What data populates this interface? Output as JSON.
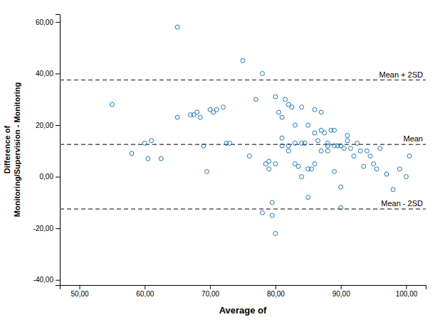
{
  "chart_data": {
    "type": "scatter",
    "xlabel": "Average of",
    "ylabel": [
      "Difference of",
      "Monitoring/Supervision - Monitoring"
    ],
    "marker": "open-circle",
    "grid": false,
    "xlim": [
      47,
      103
    ],
    "ylim": [
      -42,
      63
    ],
    "xticks": [
      {
        "value": 50,
        "label": "50,00"
      },
      {
        "value": 60,
        "label": "60,00"
      },
      {
        "value": 70,
        "label": "70,00"
      },
      {
        "value": 80,
        "label": "80,00"
      },
      {
        "value": 90,
        "label": "90,00"
      },
      {
        "value": 100,
        "label": "100,00"
      }
    ],
    "yticks": [
      {
        "value": -40,
        "label": "-40,00"
      },
      {
        "value": -20,
        "label": "-20,00"
      },
      {
        "value": 0,
        "label": "0,00"
      },
      {
        "value": 20,
        "label": "20,00"
      },
      {
        "value": 40,
        "label": "40,00"
      },
      {
        "value": 60,
        "label": "60,00"
      }
    ],
    "annotations": [
      {
        "text": "Mean",
        "y": 12.5,
        "line_style": "dashed"
      },
      {
        "text": "Mean + 2SD",
        "y": 37.5,
        "line_style": "dashed"
      },
      {
        "text": "Mean - 2SD",
        "y": -12.5,
        "line_style": "dashed"
      }
    ],
    "x": [
      55.0,
      58.0,
      60.0,
      60.5,
      61.0,
      62.5,
      65.0,
      65.0,
      67.0,
      67.5,
      68.0,
      68.5,
      69.0,
      69.5,
      70.0,
      70.5,
      71.0,
      72.0,
      72.5,
      73.0,
      75.0,
      76.0,
      77.0,
      78.0,
      78.5,
      79.0,
      79.5,
      79.5,
      80.0,
      80.5,
      81.0,
      81.5,
      82.0,
      82.5,
      83.0,
      83.5,
      84.0,
      84.5,
      85.0,
      85.5,
      86.0,
      86.5,
      87.0,
      87.5,
      88.0,
      88.5,
      89.0,
      89.5,
      90.0,
      90.5,
      91.0,
      91.5,
      92.0,
      92.5,
      93.0,
      93.5,
      94.0,
      94.5,
      95.0,
      95.5,
      96.0,
      97.0,
      98.0,
      99.0,
      100.0,
      100.5,
      78.0,
      79.0,
      80.0,
      81.0,
      82.0,
      83.0,
      84.0,
      85.0,
      86.0,
      87.0,
      88.0,
      89.0,
      90.0,
      91.0,
      80.0,
      81.0,
      82.0,
      83.0,
      84.0,
      85.0,
      86.0,
      87.0,
      88.0,
      89.0,
      90.0
    ],
    "values": [
      28.0,
      9.0,
      13.0,
      7.0,
      14.0,
      7.0,
      23.0,
      58.0,
      24.0,
      24.0,
      25.0,
      23.0,
      12.0,
      2.0,
      26.0,
      25.0,
      26.0,
      27.0,
      13.0,
      13.0,
      45.0,
      8.0,
      30.0,
      40.0,
      5.0,
      3.0,
      -10.0,
      -15.0,
      31.0,
      25.0,
      23.0,
      30.0,
      28.0,
      27.0,
      13.0,
      4.0,
      27.0,
      13.0,
      3.0,
      3.0,
      17.0,
      14.0,
      25.0,
      17.0,
      12.0,
      18.0,
      18.0,
      12.0,
      12.0,
      11.0,
      14.0,
      11.0,
      8.0,
      13.0,
      10.0,
      4.0,
      10.0,
      8.0,
      5.0,
      3.0,
      11.0,
      1.0,
      -5.0,
      3.0,
      0.0,
      8.0,
      -14.0,
      6.0,
      5.0,
      15.0,
      10.0,
      20.0,
      0.0,
      -8.0,
      5.0,
      10.0,
      13.0,
      12.0,
      -12.0,
      16.0,
      -22.0,
      12.0,
      12.0,
      5.0,
      13.0,
      20.0,
      26.0,
      18.0,
      10.0,
      2.0,
      -4.0
    ]
  }
}
